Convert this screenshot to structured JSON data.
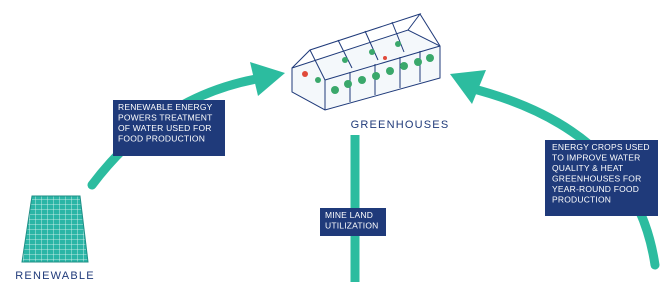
{
  "nodes": [
    {
      "label": "GREENHOUSES"
    },
    {
      "label": "RENEWABLE"
    }
  ],
  "labels": [
    {
      "lines": [
        "RENEWABLE ENERGY",
        "POWERS TREATMENT",
        "OF WATER USED FOR",
        "FOOD PRODUCTION"
      ]
    },
    {
      "lines": [
        "MINE LAND",
        "UTILIZATION"
      ]
    },
    {
      "lines": [
        "ENERGY CROPS USED",
        "TO IMPROVE WATER",
        "QUALITY & HEAT",
        "GREENHOUSES FOR",
        "YEAR-ROUND FOOD",
        "PRODUCTION"
      ]
    }
  ]
}
